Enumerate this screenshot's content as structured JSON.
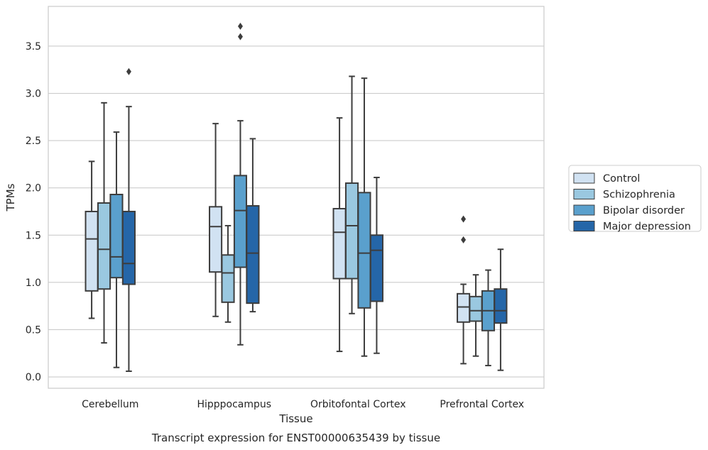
{
  "chart_data": {
    "type": "boxplot",
    "title": "",
    "caption": "Transcript expression for ENST00000635439 by tissue",
    "xlabel": "Tissue",
    "ylabel": "TPMs",
    "ylim": [
      -0.12,
      3.92
    ],
    "yticks": [
      "0.0",
      "0.5",
      "1.0",
      "1.5",
      "2.0",
      "2.5",
      "3.0",
      "3.5"
    ],
    "grid": "horizontal",
    "legend_position": "right",
    "categories": [
      "Cerebellum",
      "Hipppocampus",
      "Orbitofontal Cortex",
      "Prefrontal Cortex"
    ],
    "series": [
      {
        "name": "Control",
        "color": "#d1e2f2",
        "boxes": [
          {
            "min": 0.62,
            "q1": 0.91,
            "median": 1.46,
            "q3": 1.75,
            "max": 2.28,
            "outliers": []
          },
          {
            "min": 0.64,
            "q1": 1.11,
            "median": 1.59,
            "q3": 1.8,
            "max": 2.68,
            "outliers": []
          },
          {
            "min": 0.27,
            "q1": 1.04,
            "median": 1.53,
            "q3": 1.78,
            "max": 2.74,
            "outliers": []
          },
          {
            "min": 0.14,
            "q1": 0.58,
            "median": 0.74,
            "q3": 0.88,
            "max": 0.98,
            "outliers": [
              1.45,
              1.67
            ]
          }
        ]
      },
      {
        "name": "Schizophrenia",
        "color": "#9ac8e0",
        "boxes": [
          {
            "min": 0.36,
            "q1": 0.93,
            "median": 1.35,
            "q3": 1.84,
            "max": 2.9,
            "outliers": []
          },
          {
            "min": 0.58,
            "q1": 0.79,
            "median": 1.1,
            "q3": 1.29,
            "max": 1.6,
            "outliers": []
          },
          {
            "min": 0.67,
            "q1": 1.04,
            "median": 1.6,
            "q3": 2.05,
            "max": 3.18,
            "outliers": []
          },
          {
            "min": 0.22,
            "q1": 0.59,
            "median": 0.7,
            "q3": 0.85,
            "max": 1.08,
            "outliers": []
          }
        ]
      },
      {
        "name": "Bipolar disorder",
        "color": "#5aa0cd",
        "boxes": [
          {
            "min": 0.1,
            "q1": 1.05,
            "median": 1.27,
            "q3": 1.93,
            "max": 2.59,
            "outliers": []
          },
          {
            "min": 0.34,
            "q1": 1.16,
            "median": 1.76,
            "q3": 2.13,
            "max": 2.71,
            "outliers": [
              3.6,
              3.71
            ]
          },
          {
            "min": 0.22,
            "q1": 0.73,
            "median": 1.31,
            "q3": 1.95,
            "max": 3.16,
            "outliers": []
          },
          {
            "min": 0.12,
            "q1": 0.49,
            "median": 0.7,
            "q3": 0.91,
            "max": 1.13,
            "outliers": []
          }
        ]
      },
      {
        "name": "Major depression",
        "color": "#2566a8",
        "boxes": [
          {
            "min": 0.06,
            "q1": 0.98,
            "median": 1.2,
            "q3": 1.75,
            "max": 2.86,
            "outliers": [
              3.23
            ]
          },
          {
            "min": 0.69,
            "q1": 0.78,
            "median": 1.31,
            "q3": 1.81,
            "max": 2.52,
            "outliers": []
          },
          {
            "min": 0.25,
            "q1": 0.8,
            "median": 1.34,
            "q3": 1.5,
            "max": 2.11,
            "outliers": []
          },
          {
            "min": 0.07,
            "q1": 0.57,
            "median": 0.7,
            "q3": 0.93,
            "max": 1.35,
            "outliers": []
          }
        ]
      }
    ]
  }
}
